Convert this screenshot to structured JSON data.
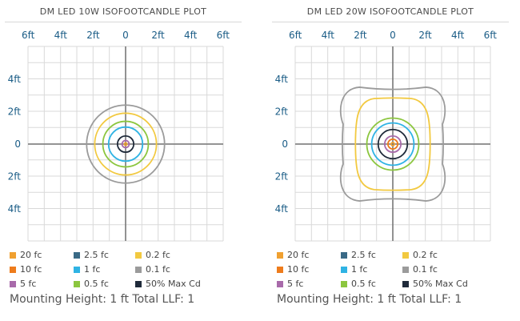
{
  "chart_data": [
    {
      "type": "isofootcandle",
      "title": "DM LED 10W ISOFOOTCANDLE PLOT",
      "x_ticks": [
        "6ft",
        "4ft",
        "2ft",
        "0",
        "2ft",
        "4ft",
        "6ft"
      ],
      "y_ticks": [
        "4ft",
        "2ft",
        "0",
        "2ft",
        "4ft"
      ],
      "xlim": [
        -6,
        6
      ],
      "ylim": [
        -6,
        6
      ],
      "grid": true,
      "contours": [
        {
          "level": "0.1 fc",
          "radius_ft": 2.4
        },
        {
          "level": "0.2 fc",
          "radius_ft": 1.9
        },
        {
          "level": "0.5 fc",
          "radius_ft": 1.4
        },
        {
          "level": "1 fc",
          "radius_ft": 1.05
        },
        {
          "level": "50% Max Cd",
          "radius_ft": 0.5
        },
        {
          "level": "5 fc",
          "radius_ft": 0.22
        },
        {
          "level": "20 fc",
          "radius_ft": 0.08
        }
      ],
      "legend": [
        {
          "label": "20 fc",
          "color": "#f0a030"
        },
        {
          "label": "2.5 fc",
          "color": "#3a6a86"
        },
        {
          "label": "0.2 fc",
          "color": "#f2c940"
        },
        {
          "label": "10 fc",
          "color": "#ee7c1c"
        },
        {
          "label": "1 fc",
          "color": "#2fb3e4"
        },
        {
          "label": "0.1 fc",
          "color": "#9b9b9b"
        },
        {
          "label": "5 fc",
          "color": "#a86aaa"
        },
        {
          "label": "0.5 fc",
          "color": "#8cc63f"
        },
        {
          "label": "50% Max Cd",
          "color": "#1f2a3a"
        }
      ],
      "footnote": "Mounting Height: 1 ft  Total LLF: 1"
    },
    {
      "type": "isofootcandle",
      "title": "DM LED 20W ISOFOOTCANDLE PLOT",
      "x_ticks": [
        "6ft",
        "4ft",
        "2ft",
        "0",
        "2ft",
        "4ft",
        "6ft"
      ],
      "y_ticks": [
        "4ft",
        "2ft",
        "0",
        "2ft",
        "4ft"
      ],
      "xlim": [
        -6,
        6
      ],
      "ylim": [
        -6,
        6
      ],
      "grid": true,
      "contours": [
        {
          "level": "0.1 fc",
          "half_width_ft": 3.4,
          "half_height_ft": 3.5
        },
        {
          "level": "0.2 fc",
          "half_width_ft": 2.3,
          "half_height_ft": 2.8
        },
        {
          "level": "0.5 fc",
          "radius_ft": 1.6
        },
        {
          "level": "1 fc",
          "radius_ft": 1.3
        },
        {
          "level": "50% Max Cd",
          "radius_ft": 0.9
        },
        {
          "level": "5 fc",
          "radius_ft": 0.5
        },
        {
          "level": "10 fc",
          "radius_ft": 0.3
        },
        {
          "level": "20 fc",
          "radius_ft": 0.1
        }
      ],
      "legend": [
        {
          "label": "20 fc",
          "color": "#f0a030"
        },
        {
          "label": "2.5 fc",
          "color": "#3a6a86"
        },
        {
          "label": "0.2 fc",
          "color": "#f2c940"
        },
        {
          "label": "10 fc",
          "color": "#ee7c1c"
        },
        {
          "label": "1 fc",
          "color": "#2fb3e4"
        },
        {
          "label": "0.1 fc",
          "color": "#9b9b9b"
        },
        {
          "label": "5 fc",
          "color": "#a86aaa"
        },
        {
          "label": "0.5 fc",
          "color": "#8cc63f"
        },
        {
          "label": "50% Max Cd",
          "color": "#1f2a3a"
        }
      ],
      "footnote": "Mounting Height: 1 ft  Total LLF: 1"
    }
  ]
}
